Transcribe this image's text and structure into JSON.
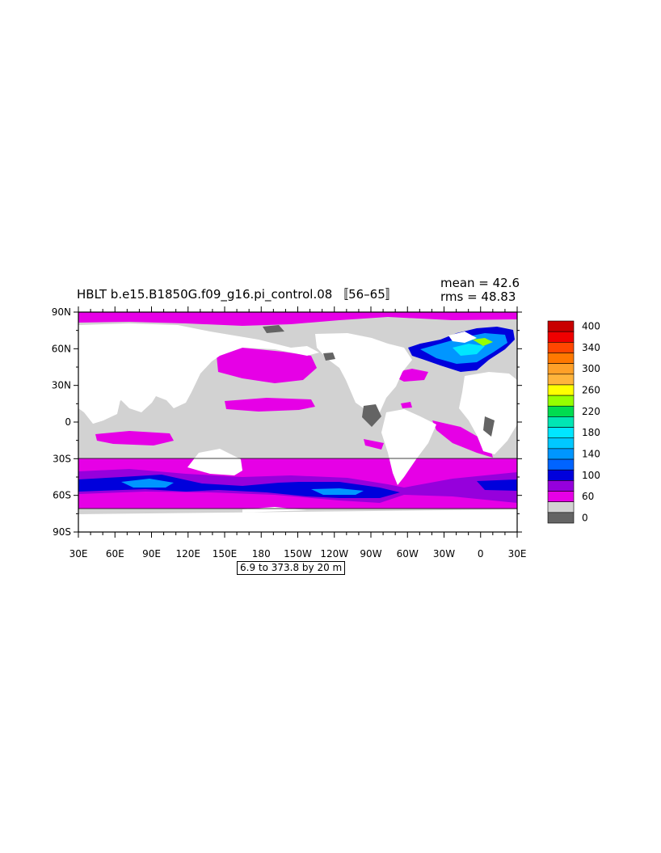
{
  "plot": {
    "title": "HBLT b.e15.B1850G.f09_g16.pi_control.08 〚56–65〛",
    "mean_text": "mean = 42.6",
    "rms_text": "rms = 48.83",
    "contour_range": "6.9 to 373.8 by 20 m"
  },
  "axes": {
    "y_ticks": [
      "90N",
      "60N",
      "30N",
      "0",
      "30S",
      "60S",
      "90S"
    ],
    "x_ticks": [
      "30E",
      "60E",
      "90E",
      "120E",
      "150E",
      "180",
      "150W",
      "120W",
      "90W",
      "60W",
      "30W",
      "0",
      "30E"
    ]
  },
  "colorbar": {
    "labels": [
      "400",
      "340",
      "300",
      "260",
      "220",
      "180",
      "140",
      "100",
      "60",
      "0"
    ],
    "colors": [
      "#c80000",
      "#f00000",
      "#ff4600",
      "#ff7800",
      "#ffa028",
      "#ffb43c",
      "#ffff00",
      "#96ff00",
      "#00dc50",
      "#00e6b4",
      "#00e6ff",
      "#00c8ff",
      "#0096ff",
      "#0064ff",
      "#0000dc",
      "#9600dc",
      "#e600e6",
      "#d2d2d2",
      "#646464"
    ]
  },
  "colors": {
    "land": "#ffffff",
    "shallow": "#d2d2d2",
    "level_60": "#e600e6",
    "level_80": "#9600dc",
    "level_100": "#0000dc",
    "level_120": "#0096ff",
    "ice_shelf": "#646464"
  }
}
